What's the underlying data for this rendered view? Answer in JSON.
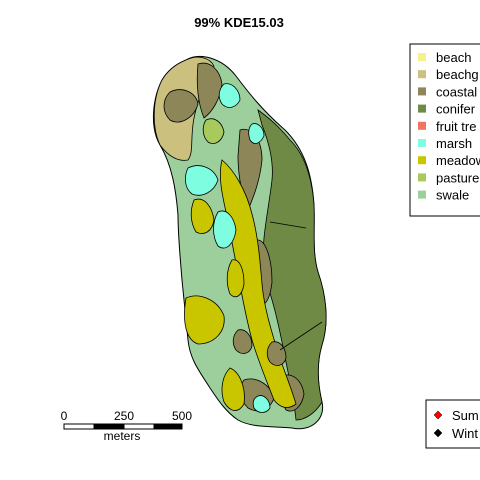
{
  "title": "99% KDE15.03",
  "colors": {
    "beach": "#f5f08a",
    "beachgrass": "#cbc07e",
    "coastal": "#8c8658",
    "conifer": "#6f8a45",
    "fruit_tree": "#f07560",
    "marsh": "#7ffde0",
    "meadow": "#c9c600",
    "pasture": "#a8c95c",
    "swale": "#9ccf9c"
  },
  "legend": {
    "items": [
      {
        "label": "beach",
        "color": "#f5f08a"
      },
      {
        "label": "beachg",
        "color": "#cbc07e"
      },
      {
        "label": "coastal",
        "color": "#8c8658"
      },
      {
        "label": "conifer",
        "color": "#6f8a45"
      },
      {
        "label": "fruit tre",
        "color": "#f07560"
      },
      {
        "label": "marsh",
        "color": "#7ffde0"
      },
      {
        "label": "meadow",
        "color": "#c9c600"
      },
      {
        "label": "pasture",
        "color": "#a8c95c"
      },
      {
        "label": "swale",
        "color": "#9ccf9c"
      }
    ]
  },
  "season_legend": {
    "items": [
      {
        "label": "Sum",
        "color": "#ff0000"
      },
      {
        "label": "Wint",
        "color": "#000000"
      }
    ]
  },
  "scalebar": {
    "ticks": [
      "0",
      "250",
      "500"
    ],
    "unit": "meters"
  }
}
